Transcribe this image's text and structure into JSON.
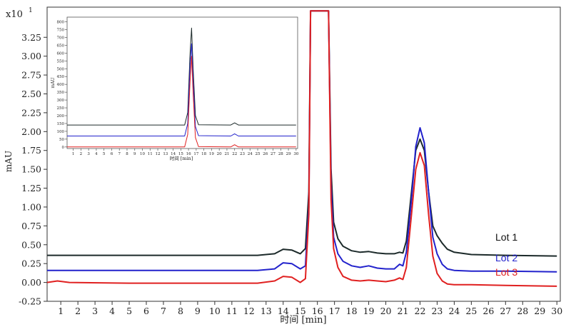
{
  "chart_data": {
    "type": "line",
    "xlabel": "时间 [min]",
    "ylabel": "mAU",
    "exponent_label": "x10",
    "exponent_power": "1",
    "xlim": [
      0.2,
      30.2
    ],
    "ylim": [
      -0.25,
      3.65
    ],
    "xticks": [
      1,
      2,
      3,
      4,
      5,
      6,
      7,
      8,
      9,
      10,
      11,
      12,
      13,
      14,
      15,
      16,
      17,
      18,
      19,
      20,
      21,
      22,
      23,
      24,
      25,
      26,
      27,
      28,
      29,
      30
    ],
    "xtick_labels": [
      "1",
      "2",
      "3",
      "4",
      "5",
      "6",
      "7",
      "8",
      "9",
      "10",
      "11",
      "12",
      "13",
      "14",
      "15",
      "16",
      "17",
      "18",
      "19",
      "20",
      "21",
      "22",
      "23",
      "24",
      "25",
      "26",
      "27",
      "28",
      "29",
      "30"
    ],
    "yticks": [
      -0.25,
      0,
      0.25,
      0.5,
      0.75,
      1,
      1.25,
      1.5,
      1.75,
      2,
      2.25,
      2.5,
      2.75,
      3,
      3.25
    ],
    "ytick_labels": [
      "-0.25",
      "0.00",
      "0.25",
      "0.50",
      "0.75",
      "1.00",
      "1.25",
      "1.50",
      "1.75",
      "2.00",
      "2.25",
      "2.50",
      "2.75",
      "3.00",
      "3.25"
    ],
    "grid": false,
    "legend": "right, next to series ends",
    "series": [
      {
        "name": "Lot 1",
        "color": "#1c2a2a",
        "x": [
          0.2,
          5,
          10,
          12.5,
          13.5,
          14.0,
          14.5,
          15.0,
          15.3,
          15.5,
          15.6,
          16.65,
          16.8,
          16.95,
          17.2,
          17.5,
          18.0,
          18.5,
          19.0,
          19.5,
          20.0,
          20.5,
          20.8,
          21.0,
          21.2,
          21.5,
          21.75,
          22.0,
          22.25,
          22.5,
          22.75,
          23.0,
          23.3,
          23.6,
          24.0,
          25.0,
          27.0,
          30.0
        ],
        "y": [
          0.36,
          0.36,
          0.36,
          0.36,
          0.38,
          0.44,
          0.43,
          0.38,
          0.45,
          1.2,
          3.6,
          3.6,
          1.5,
          0.8,
          0.58,
          0.48,
          0.42,
          0.4,
          0.41,
          0.39,
          0.38,
          0.38,
          0.4,
          0.39,
          0.55,
          1.2,
          1.75,
          1.9,
          1.75,
          1.2,
          0.75,
          0.62,
          0.52,
          0.44,
          0.4,
          0.37,
          0.36,
          0.35
        ]
      },
      {
        "name": "Lot 2",
        "color": "#2222cc",
        "x": [
          0.2,
          5,
          10,
          12.5,
          13.5,
          14.0,
          14.5,
          15.0,
          15.3,
          15.5,
          15.6,
          16.65,
          16.8,
          16.95,
          17.2,
          17.5,
          18.0,
          18.5,
          19.0,
          19.5,
          20.0,
          20.5,
          20.8,
          21.0,
          21.2,
          21.5,
          21.75,
          22.0,
          22.25,
          22.5,
          22.75,
          23.0,
          23.3,
          23.6,
          24.0,
          25.0,
          27.0,
          30.0
        ],
        "y": [
          0.16,
          0.16,
          0.16,
          0.16,
          0.18,
          0.26,
          0.25,
          0.18,
          0.22,
          1.0,
          3.6,
          3.6,
          1.3,
          0.6,
          0.38,
          0.28,
          0.22,
          0.2,
          0.22,
          0.19,
          0.18,
          0.18,
          0.24,
          0.22,
          0.4,
          1.1,
          1.8,
          2.05,
          1.85,
          1.2,
          0.6,
          0.38,
          0.24,
          0.18,
          0.16,
          0.15,
          0.15,
          0.14
        ]
      },
      {
        "name": "Lot 3",
        "color": "#e02020",
        "x": [
          0.2,
          0.8,
          1.5,
          5,
          10,
          12.5,
          13.5,
          14.0,
          14.5,
          15.0,
          15.3,
          15.5,
          15.6,
          16.65,
          16.8,
          16.95,
          17.2,
          17.5,
          18.0,
          18.5,
          19.0,
          19.5,
          20.0,
          20.5,
          20.8,
          21.0,
          21.2,
          21.5,
          21.75,
          22.0,
          22.25,
          22.5,
          22.75,
          23.0,
          23.3,
          23.6,
          24.0,
          25.0,
          27.0,
          30.0
        ],
        "y": [
          0.0,
          0.02,
          0.0,
          -0.01,
          -0.01,
          -0.01,
          0.02,
          0.08,
          0.07,
          0.0,
          0.05,
          0.9,
          3.6,
          3.6,
          1.1,
          0.45,
          0.2,
          0.08,
          0.03,
          0.02,
          0.03,
          0.02,
          0.01,
          0.03,
          0.06,
          0.04,
          0.2,
          0.9,
          1.5,
          1.72,
          1.55,
          0.9,
          0.35,
          0.12,
          0.02,
          -0.02,
          -0.03,
          -0.03,
          -0.04,
          -0.05
        ]
      }
    ],
    "inset": {
      "xlabel": "时间 [min]",
      "ylabel": "mAU",
      "xlim": [
        0.2,
        30.2
      ],
      "ylim": [
        -10,
        830
      ],
      "xticks": [
        1,
        2,
        3,
        4,
        5,
        6,
        7,
        8,
        9,
        10,
        11,
        12,
        13,
        14,
        15,
        16,
        17,
        18,
        19,
        20,
        21,
        22,
        23,
        24,
        25,
        26,
        27,
        28,
        29,
        30
      ],
      "xtick_labels": [
        "1",
        "2",
        "3",
        "4",
        "5",
        "6",
        "7",
        "8",
        "9",
        "10",
        "11",
        "12",
        "13",
        "14",
        "15",
        "16",
        "17",
        "18",
        "19",
        "20",
        "21",
        "22",
        "23",
        "24",
        "25",
        "26",
        "27",
        "28",
        "29",
        "30"
      ],
      "yticks": [
        0,
        50,
        100,
        150,
        200,
        250,
        300,
        350,
        400,
        450,
        500,
        550,
        600,
        650,
        700,
        750,
        800
      ],
      "ytick_labels": [
        "0",
        "50",
        "100",
        "150",
        "200",
        "250",
        "300",
        "350",
        "400",
        "450",
        "500",
        "550",
        "600",
        "650",
        "700",
        "750",
        "800"
      ],
      "series": [
        {
          "color": "#1c2a2a",
          "x": [
            0.2,
            15.5,
            15.9,
            16.2,
            16.4,
            16.6,
            16.9,
            17.3,
            21.5,
            22.0,
            22.5,
            30.0
          ],
          "y": [
            140,
            140,
            220,
            600,
            760,
            500,
            200,
            142,
            140,
            154,
            140,
            140
          ]
        },
        {
          "color": "#2222cc",
          "x": [
            0.2,
            15.5,
            15.9,
            16.2,
            16.4,
            16.6,
            16.9,
            17.3,
            21.5,
            22.0,
            22.5,
            30.0
          ],
          "y": [
            70,
            70,
            150,
            520,
            660,
            420,
            130,
            72,
            70,
            84,
            70,
            70
          ]
        },
        {
          "color": "#e02020",
          "x": [
            0.2,
            15.5,
            15.9,
            16.2,
            16.4,
            16.6,
            16.9,
            17.3,
            21.5,
            22.0,
            22.5,
            30.0
          ],
          "y": [
            0,
            0,
            80,
            420,
            580,
            340,
            60,
            2,
            0,
            14,
            0,
            0
          ]
        }
      ]
    }
  }
}
